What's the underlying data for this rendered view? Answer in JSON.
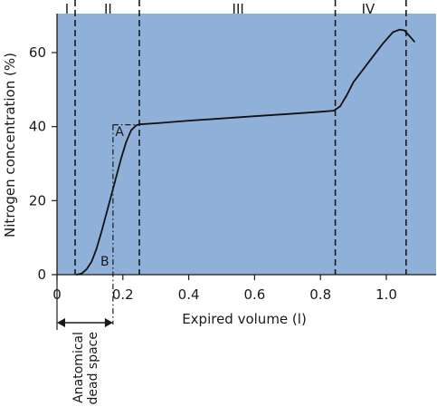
{
  "chart_data": {
    "type": "line",
    "xlabel": "Expired volume (l)",
    "ylabel": "Nitrogen concentration (%)",
    "xlim": [
      0,
      1.1
    ],
    "ylim": [
      0,
      68
    ],
    "x_ticks": [
      {
        "value": 0,
        "label": "0"
      },
      {
        "value": 0.2,
        "label": "0.2"
      },
      {
        "value": 0.4,
        "label": "0.4"
      },
      {
        "value": 0.6,
        "label": "0.6"
      },
      {
        "value": 0.8,
        "label": "0.8"
      },
      {
        "value": 1.0,
        "label": "1.0"
      }
    ],
    "y_ticks": [
      {
        "value": 0,
        "label": "0"
      },
      {
        "value": 20,
        "label": "20"
      },
      {
        "value": 40,
        "label": "40"
      },
      {
        "value": 60,
        "label": "60"
      }
    ],
    "grid": false,
    "background_color": "#8fb0d8",
    "line_color": "#111111",
    "series": [
      {
        "x": [
          0.06,
          0.075,
          0.09,
          0.105,
          0.12,
          0.135,
          0.15,
          0.165,
          0.18,
          0.195,
          0.21,
          0.225,
          0.24,
          0.25,
          0.3,
          0.4,
          0.5,
          0.6,
          0.7,
          0.8,
          0.84,
          0.86,
          0.88,
          0.9,
          0.93,
          0.96,
          0.99,
          1.02,
          1.04,
          1.055,
          1.065,
          1.075,
          1.085
        ],
        "y": [
          0,
          0.3,
          1.5,
          3.5,
          7,
          11.5,
          16.5,
          21.5,
          26.5,
          31.5,
          35.8,
          39,
          40.3,
          40.6,
          40.9,
          41.6,
          42.2,
          42.8,
          43.4,
          44.0,
          44.3,
          45.5,
          48.5,
          52,
          55.5,
          59,
          62.5,
          65.5,
          66.2,
          66.0,
          65.0,
          64.0,
          63.0
        ]
      }
    ],
    "phase_boundaries": [
      {
        "x": 0.055,
        "label_before": "I"
      },
      {
        "x": 0.25,
        "label_before": "II"
      },
      {
        "x": 0.845,
        "label_before": "III"
      },
      {
        "x": 1.06,
        "label_before": "IV"
      }
    ],
    "phase_labels": [
      {
        "label": "I",
        "x": 0.03
      },
      {
        "label": "II",
        "x": 0.155
      },
      {
        "label": "III",
        "x": 0.55
      },
      {
        "label": "IV",
        "x": 0.945
      }
    ],
    "equal_area_construction": {
      "x": 0.17,
      "top_y": 40.5,
      "top_x_end": 0.25,
      "area_labels": [
        {
          "label": "A",
          "x": 0.19,
          "y": 37.5
        },
        {
          "label": "B",
          "x": 0.145,
          "y": 2.5
        }
      ]
    },
    "annotation": {
      "text_line1": "Anatomical",
      "text_line2": "dead space",
      "from_x": 0,
      "to_x": 0.17
    }
  }
}
